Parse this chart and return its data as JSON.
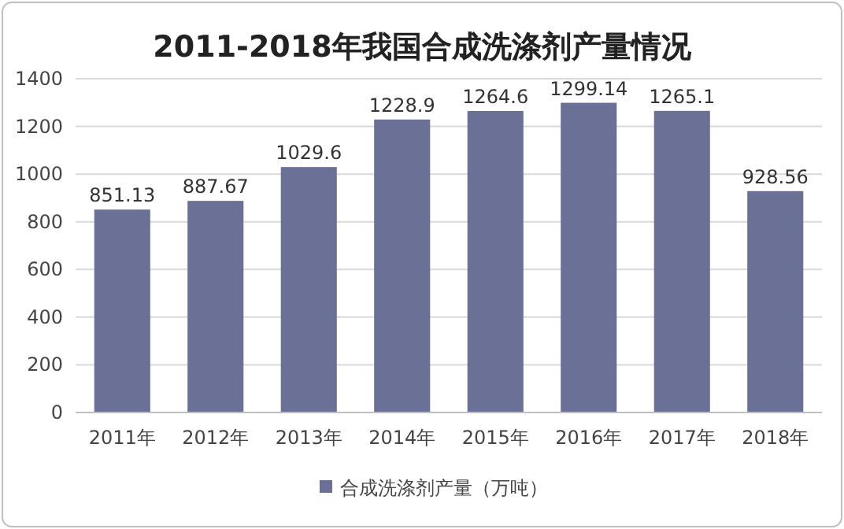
{
  "chart_data": {
    "type": "bar",
    "title": "2011-2018年我国合成洗涤剂产量情况",
    "categories": [
      "2011年",
      "2012年",
      "2013年",
      "2014年",
      "2015年",
      "2016年",
      "2017年",
      "2018年"
    ],
    "series": [
      {
        "name": "合成洗涤剂产量（万吨）",
        "color": "#6a7096",
        "values": [
          851.13,
          887.67,
          1029.6,
          1228.9,
          1264.6,
          1299.14,
          1265.1,
          928.56
        ]
      }
    ],
    "ylim": [
      0,
      1400
    ],
    "yticks": [
      0,
      200,
      400,
      600,
      800,
      1000,
      1200,
      1400
    ],
    "grid": "y",
    "legend": "bottom",
    "data_labels": true
  }
}
